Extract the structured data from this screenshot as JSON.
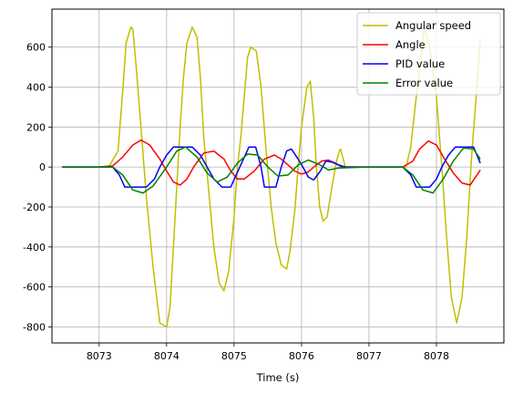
{
  "chart_data": {
    "type": "line",
    "xlabel": "Time (s)",
    "ylabel": "",
    "xlim": [
      8072.3,
      8079.0
    ],
    "ylim": [
      -880,
      790
    ],
    "xticks": [
      8073,
      8074,
      8075,
      8076,
      8077,
      8078
    ],
    "yticks": [
      -800,
      -600,
      -400,
      -200,
      0,
      200,
      400,
      600
    ],
    "grid": true,
    "legend_position": "top-right",
    "colors": {
      "angular_speed": "#bfbf00",
      "angle": "#ff0000",
      "pid": "#0000ff",
      "error": "#008000"
    },
    "series": [
      {
        "name": "Angular speed",
        "color": "#bfbf00",
        "x": [
          8072.45,
          8073.0,
          8073.15,
          8073.28,
          8073.35,
          8073.4,
          8073.47,
          8073.5,
          8073.55,
          8073.62,
          8073.7,
          8073.8,
          8073.9,
          8074.0,
          8074.05,
          8074.1,
          8074.15,
          8074.2,
          8074.25,
          8074.3,
          8074.38,
          8074.45,
          8074.5,
          8074.55,
          8074.62,
          8074.7,
          8074.78,
          8074.85,
          8074.92,
          8075.0,
          8075.05,
          8075.1,
          8075.15,
          8075.2,
          8075.25,
          8075.33,
          8075.4,
          8075.47,
          8075.55,
          8075.62,
          8075.7,
          8075.78,
          8075.83,
          8075.9,
          8075.95,
          8076.0,
          8076.08,
          8076.13,
          8076.18,
          8076.22,
          8076.27,
          8076.32,
          8076.38,
          8076.45,
          8076.52,
          8076.56,
          8076.58,
          8076.65,
          8077.0,
          8077.4,
          8077.55,
          8077.62,
          8077.7,
          8077.78,
          8077.82,
          8077.9,
          8078.0,
          8078.08,
          8078.15,
          8078.22,
          8078.3,
          8078.38,
          8078.45,
          8078.52,
          8078.6,
          8078.65
        ],
        "y": [
          0,
          0,
          5,
          80,
          380,
          620,
          700,
          690,
          500,
          200,
          -150,
          -500,
          -780,
          -800,
          -700,
          -400,
          -100,
          200,
          450,
          620,
          700,
          650,
          450,
          150,
          -100,
          -400,
          -580,
          -620,
          -520,
          -250,
          0,
          150,
          350,
          550,
          600,
          580,
          400,
          100,
          -200,
          -380,
          -490,
          -510,
          -420,
          -220,
          0,
          200,
          400,
          430,
          250,
          0,
          -200,
          -270,
          -250,
          -100,
          30,
          80,
          90,
          0,
          0,
          0,
          0,
          100,
          350,
          580,
          700,
          600,
          350,
          0,
          -350,
          -650,
          -780,
          -650,
          -350,
          50,
          400,
          640
        ]
      },
      {
        "name": "Angle",
        "color": "#ff0000",
        "x": [
          8072.45,
          8073.0,
          8073.2,
          8073.35,
          8073.5,
          8073.62,
          8073.75,
          8073.9,
          8074.0,
          8074.1,
          8074.2,
          8074.3,
          8074.4,
          8074.55,
          8074.7,
          8074.85,
          8074.95,
          8075.05,
          8075.15,
          8075.3,
          8075.45,
          8075.6,
          8075.7,
          8075.8,
          8075.9,
          8076.0,
          8076.1,
          8076.2,
          8076.3,
          8076.4,
          8076.5,
          8076.6,
          8077.0,
          8077.5,
          8077.65,
          8077.75,
          8077.88,
          8078.0,
          8078.12,
          8078.25,
          8078.38,
          8078.5,
          8078.65
        ],
        "y": [
          0,
          0,
          5,
          50,
          110,
          135,
          110,
          40,
          -20,
          -75,
          -90,
          -60,
          0,
          70,
          80,
          40,
          -20,
          -60,
          -60,
          -20,
          40,
          60,
          40,
          10,
          -20,
          -35,
          -25,
          5,
          30,
          35,
          20,
          0,
          0,
          0,
          30,
          90,
          130,
          110,
          40,
          -30,
          -80,
          -90,
          -15
        ]
      },
      {
        "name": "PID value",
        "color": "#0000ff",
        "x": [
          8072.45,
          8073.2,
          8073.3,
          8073.38,
          8073.7,
          8073.82,
          8073.9,
          8074.0,
          8074.1,
          8074.2,
          8074.38,
          8074.5,
          8074.6,
          8074.7,
          8074.82,
          8074.95,
          8075.22,
          8075.32,
          8075.4,
          8075.45,
          8075.62,
          8075.7,
          8075.78,
          8075.85,
          8075.95,
          8076.02,
          8076.1,
          8076.18,
          8076.28,
          8076.36,
          8076.45,
          8076.55,
          8076.65,
          8077.5,
          8077.62,
          8077.7,
          8077.8,
          8077.9,
          8078.0,
          8078.08,
          8078.18,
          8078.28,
          8078.4,
          8078.55,
          8078.65
        ],
        "y": [
          0,
          0,
          -40,
          -100,
          -100,
          -60,
          0,
          60,
          100,
          100,
          100,
          60,
          0,
          -60,
          -100,
          -100,
          100,
          100,
          0,
          -100,
          -100,
          0,
          80,
          90,
          40,
          0,
          -50,
          -65,
          -20,
          30,
          25,
          10,
          0,
          0,
          -40,
          -100,
          -100,
          -100,
          -60,
          0,
          60,
          100,
          100,
          100,
          20
        ]
      },
      {
        "name": "Error value",
        "color": "#008000",
        "x": [
          8072.45,
          8073.2,
          8073.35,
          8073.5,
          8073.65,
          8073.8,
          8074.0,
          8074.15,
          8074.28,
          8074.45,
          8074.6,
          8074.75,
          8074.9,
          8075.05,
          8075.2,
          8075.35,
          8075.5,
          8075.65,
          8075.8,
          8075.95,
          8076.1,
          8076.25,
          8076.4,
          8076.55,
          8077.0,
          8077.5,
          8077.65,
          8077.8,
          8077.95,
          8078.1,
          8078.25,
          8078.4,
          8078.55,
          8078.65
        ],
        "y": [
          0,
          0,
          -40,
          -115,
          -130,
          -95,
          0,
          80,
          100,
          50,
          -30,
          -75,
          -50,
          20,
          65,
          60,
          0,
          -45,
          -40,
          10,
          35,
          15,
          -15,
          -5,
          0,
          0,
          -40,
          -115,
          -130,
          -60,
          30,
          95,
          90,
          40
        ]
      }
    ]
  }
}
